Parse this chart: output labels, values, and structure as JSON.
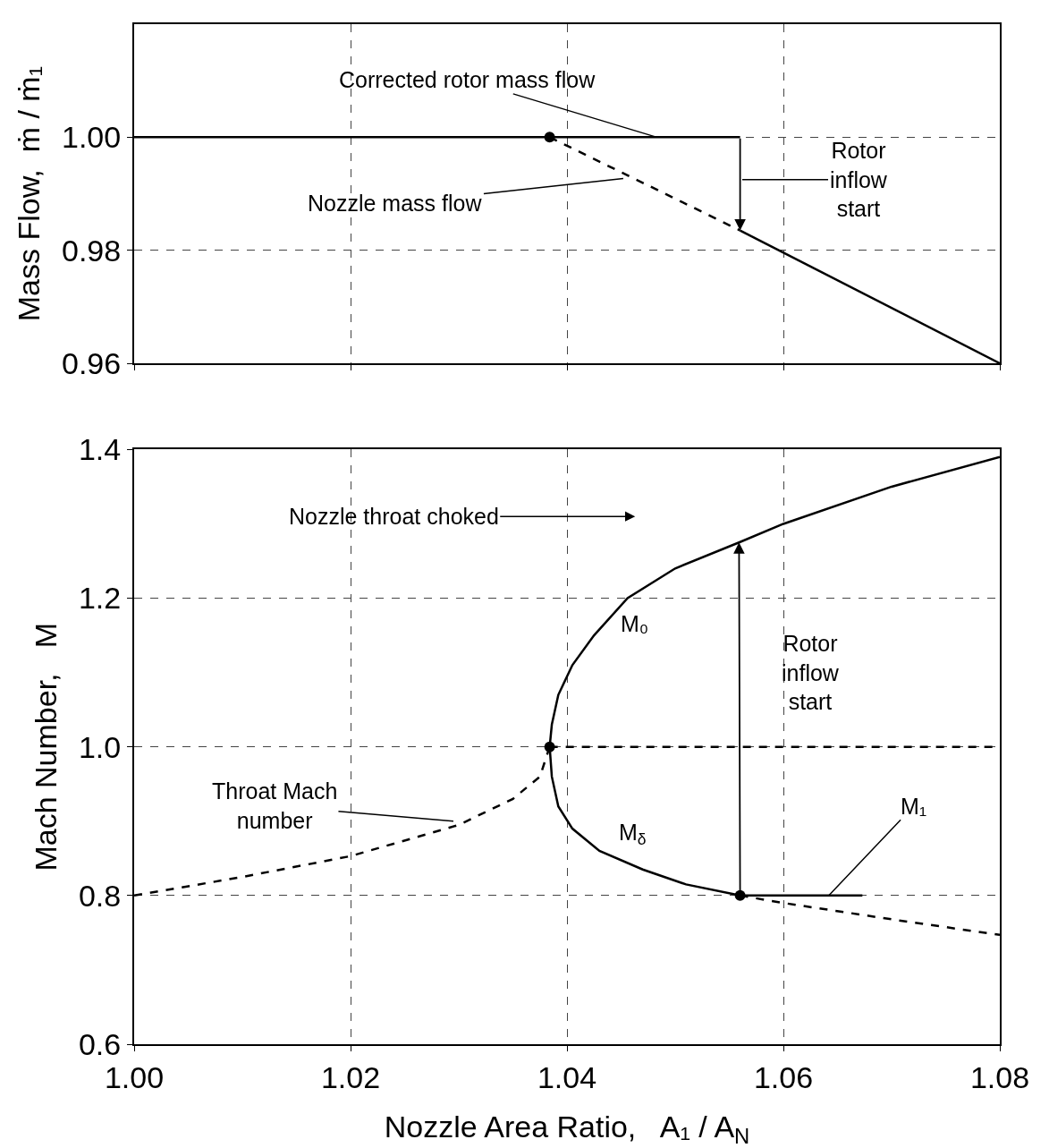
{
  "chart_data": [
    {
      "type": "line",
      "ylabel": "Mass Flow,  ṁ / ṁ₁",
      "xlim": [
        1.0,
        1.08
      ],
      "xticks": [
        1.0,
        1.02,
        1.04,
        1.06,
        1.08
      ],
      "ylim": [
        0.96,
        1.02
      ],
      "yticks": [
        0.96,
        0.98,
        {
          "value": 1.0,
          "label": "1.00"
        }
      ],
      "tick_labels": "y",
      "grid": true,
      "series": [
        {
          "color": "#000000",
          "line_style": "solid",
          "x": [
            1.0,
            1.056
          ],
          "values": [
            1.0,
            1.0
          ]
        },
        {
          "color": "#000000",
          "line_style": "dashed",
          "x": [
            1.0384,
            1.056
          ],
          "values": [
            1.0,
            0.9835
          ]
        },
        {
          "color": "#000000",
          "line_style": "solid",
          "x": [
            1.056,
            1.08
          ],
          "values": [
            0.9835,
            0.96
          ]
        },
        {
          "type": "scatter",
          "color": "#000000",
          "marker": "circle",
          "x": [
            1.0384
          ],
          "values": [
            1.0
          ]
        }
      ],
      "annotations": [
        {
          "text": "Corrected rotor mass flow",
          "x": 1.0483,
          "y": 1.0
        },
        {
          "text": "Nozzle mass flow",
          "x": 1.0452,
          "y": 0.9927
        },
        "Rotor\ninflow\nstart"
      ]
    },
    {
      "type": "line",
      "xlabel": "Nozzle Area Ratio,   A₁ / A$_{N}$",
      "ylabel": "Mach Number,   M",
      "xlim": [
        1.0,
        1.08
      ],
      "xticks": [
        {
          "value": 1.0,
          "label": "1.00"
        },
        1.02,
        1.04,
        1.06,
        1.08
      ],
      "ylim": [
        0.6,
        1.4
      ],
      "yticks": [
        0.6,
        0.8,
        {
          "value": 1.0,
          "label": "1.0"
        },
        1.2,
        1.4
      ],
      "grid": true,
      "series": [
        {
          "color": "#000000",
          "line_style": "dashed",
          "x": [
            1.0,
            1.01,
            1.02,
            1.03,
            1.035,
            1.0375,
            1.0384
          ],
          "values": [
            0.8,
            0.825,
            0.853,
            0.895,
            0.93,
            0.96,
            1.0
          ]
        },
        {
          "color": "#000000",
          "line_style": "solid",
          "x": [
            1.0384,
            1.0386,
            1.0392,
            1.0405,
            1.0425,
            1.0456,
            1.05,
            1.0559,
            1.06,
            1.07,
            1.08
          ],
          "values": [
            1.0,
            1.03,
            1.07,
            1.11,
            1.15,
            1.2,
            1.24,
            1.275,
            1.3,
            1.35,
            1.39
          ]
        },
        {
          "color": "#000000",
          "line_style": "solid",
          "x": [
            1.0384,
            1.0386,
            1.0392,
            1.0405,
            1.043,
            1.047,
            1.051,
            1.056
          ],
          "values": [
            1.0,
            0.96,
            0.92,
            0.89,
            0.86,
            0.835,
            0.815,
            0.8
          ]
        },
        {
          "color": "#000000",
          "line_style": "dashed",
          "x": [
            1.0384,
            1.08
          ],
          "values": [
            1.0,
            1.0
          ]
        },
        {
          "color": "#000000",
          "line_style": "solid",
          "x": [
            1.056,
            1.0673
          ],
          "values": [
            0.8,
            0.8
          ]
        },
        {
          "color": "#000000",
          "line_style": "dashed",
          "x": [
            1.056,
            1.06,
            1.07,
            1.08
          ],
          "values": [
            0.8,
            0.79,
            0.768,
            0.747
          ]
        },
        {
          "type": "scatter",
          "color": "#000000",
          "marker": "circle",
          "x": [
            1.0384,
            1.056
          ],
          "values": [
            1.0,
            0.8
          ]
        }
      ],
      "annotations": [
        "Nozzle throat choked",
        "M₀",
        "M$_{δ}$",
        "Rotor\ninflow\nstart",
        {
          "text": "Throat Mach\nnumber",
          "x": 1.0295,
          "y": 0.9
        },
        {
          "text": "M₁",
          "x": 1.0642,
          "y": 0.8
        }
      ]
    }
  ]
}
